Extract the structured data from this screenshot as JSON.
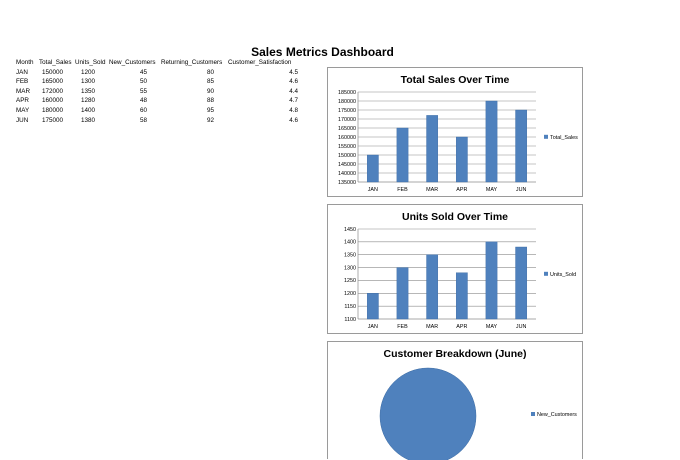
{
  "dashboard": {
    "title": "Sales Metrics Dashboard"
  },
  "table": {
    "headers": [
      "Month",
      "Total_Sales",
      "Units_Sold",
      "New_Customers",
      "Returning_Customers",
      "Customer_Satisfaction"
    ],
    "rows": [
      [
        "JAN",
        "150000",
        "1200",
        "45",
        "80",
        "4.5"
      ],
      [
        "FEB",
        "165000",
        "1300",
        "50",
        "85",
        "4.6"
      ],
      [
        "MAR",
        "172000",
        "1350",
        "55",
        "90",
        "4.4"
      ],
      [
        "APR",
        "160000",
        "1280",
        "48",
        "88",
        "4.7"
      ],
      [
        "MAY",
        "180000",
        "1400",
        "60",
        "95",
        "4.8"
      ],
      [
        "JUN",
        "175000",
        "1380",
        "58",
        "92",
        "4.6"
      ]
    ]
  },
  "colors": {
    "bar": "#4f81bd",
    "bar_edge": "#3a6aa3",
    "grid": "#8c8c8c"
  },
  "chart_data": [
    {
      "type": "bar",
      "title": "Total Sales Over Time",
      "categories": [
        "JAN",
        "FEB",
        "MAR",
        "APR",
        "MAY",
        "JUN"
      ],
      "series": [
        {
          "name": "Total_Sales",
          "values": [
            150000,
            165000,
            172000,
            160000,
            180000,
            175000
          ]
        }
      ],
      "ylim": [
        135000,
        185000
      ],
      "yticks": [
        135000,
        140000,
        145000,
        150000,
        155000,
        160000,
        165000,
        170000,
        175000,
        180000,
        185000
      ],
      "grid": true,
      "legend": "right"
    },
    {
      "type": "bar",
      "title": "Units Sold Over Time",
      "categories": [
        "JAN",
        "FEB",
        "MAR",
        "APR",
        "MAY",
        "JUN"
      ],
      "series": [
        {
          "name": "Units_Sold",
          "values": [
            1200,
            1300,
            1350,
            1280,
            1400,
            1380
          ]
        }
      ],
      "ylim": [
        1100,
        1450
      ],
      "yticks": [
        1100,
        1150,
        1200,
        1250,
        1300,
        1350,
        1400,
        1450
      ],
      "grid": true,
      "legend": "right"
    },
    {
      "type": "pie",
      "title": "Customer Breakdown (June)",
      "series": [
        {
          "name": "New_Customers",
          "values": [
            58
          ]
        }
      ],
      "legend": "right"
    }
  ]
}
